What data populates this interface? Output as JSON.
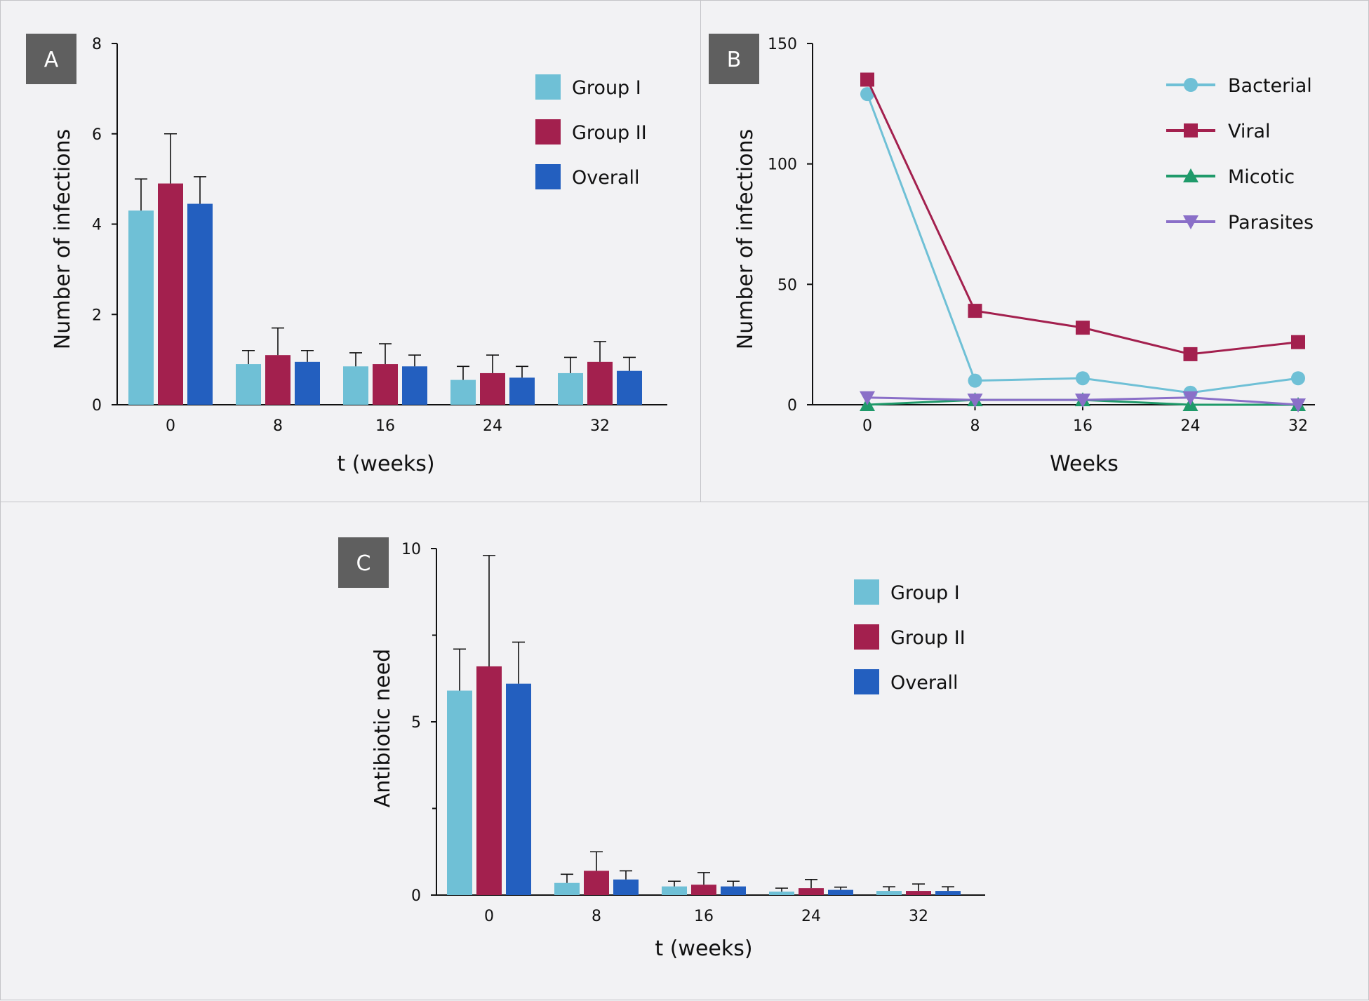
{
  "colors": {
    "group_i": "#6fc0d6",
    "group_ii": "#a3204e",
    "overall": "#235fbf",
    "bacterial": "#6fc0d6",
    "viral": "#a3204e",
    "micotic": "#1f9a6a",
    "parasites": "#8a6fc8",
    "badge": "#5f5f5f"
  },
  "chart_data": [
    {
      "panel": "A",
      "type": "bar",
      "ylabel": "Number of infections",
      "xlabel": "t (weeks)",
      "categories": [
        "0",
        "8",
        "16",
        "24",
        "32"
      ],
      "ylim": [
        0,
        8
      ],
      "yticks": [
        "0",
        "2",
        "4",
        "6",
        "8"
      ],
      "legend_position": "top-right",
      "series": [
        {
          "name": "Group I",
          "color_key": "group_i",
          "values": [
            4.3,
            0.9,
            0.85,
            0.55,
            0.7
          ],
          "errors": [
            0.7,
            0.3,
            0.3,
            0.3,
            0.35
          ]
        },
        {
          "name": "Group II",
          "color_key": "group_ii",
          "values": [
            4.9,
            1.1,
            0.9,
            0.7,
            0.95
          ],
          "errors": [
            1.1,
            0.6,
            0.45,
            0.4,
            0.45
          ]
        },
        {
          "name": "Overall",
          "color_key": "overall",
          "values": [
            4.45,
            0.95,
            0.85,
            0.6,
            0.75
          ],
          "errors": [
            0.6,
            0.25,
            0.25,
            0.25,
            0.3
          ]
        }
      ]
    },
    {
      "panel": "B",
      "type": "line",
      "ylabel": "Number of infections",
      "xlabel": "Weeks",
      "categories": [
        "0",
        "8",
        "16",
        "24",
        "32"
      ],
      "ylim": [
        0,
        150
      ],
      "yticks": [
        "0",
        "50",
        "100",
        "150"
      ],
      "legend_position": "top-right",
      "series": [
        {
          "name": "Bacterial",
          "color_key": "bacterial",
          "marker": "circle",
          "values": [
            129,
            10,
            11,
            5,
            11
          ]
        },
        {
          "name": "Viral",
          "color_key": "viral",
          "marker": "square",
          "values": [
            135,
            39,
            32,
            21,
            26
          ]
        },
        {
          "name": "Micotic",
          "color_key": "micotic",
          "marker": "triangle-up",
          "values": [
            0,
            2,
            2,
            0,
            0
          ]
        },
        {
          "name": "Parasites",
          "color_key": "parasites",
          "marker": "triangle-down",
          "values": [
            3,
            2,
            2,
            3,
            0
          ]
        }
      ]
    },
    {
      "panel": "C",
      "type": "bar",
      "ylabel": "Antibiotic need",
      "xlabel": "t (weeks)",
      "categories": [
        "0",
        "8",
        "16",
        "24",
        "32"
      ],
      "ylim": [
        0,
        10
      ],
      "yticks": [
        "0",
        "5",
        "10"
      ],
      "legend_position": "top-right",
      "series": [
        {
          "name": "Group I",
          "color_key": "group_i",
          "values": [
            5.9,
            0.35,
            0.25,
            0.1,
            0.12
          ],
          "errors": [
            1.2,
            0.25,
            0.15,
            0.1,
            0.12
          ]
        },
        {
          "name": "Group II",
          "color_key": "group_ii",
          "values": [
            6.6,
            0.7,
            0.3,
            0.2,
            0.12
          ],
          "errors": [
            3.2,
            0.55,
            0.35,
            0.25,
            0.2
          ]
        },
        {
          "name": "Overall",
          "color_key": "overall",
          "values": [
            6.1,
            0.45,
            0.25,
            0.15,
            0.12
          ],
          "errors": [
            1.2,
            0.25,
            0.15,
            0.08,
            0.12
          ]
        }
      ]
    }
  ]
}
